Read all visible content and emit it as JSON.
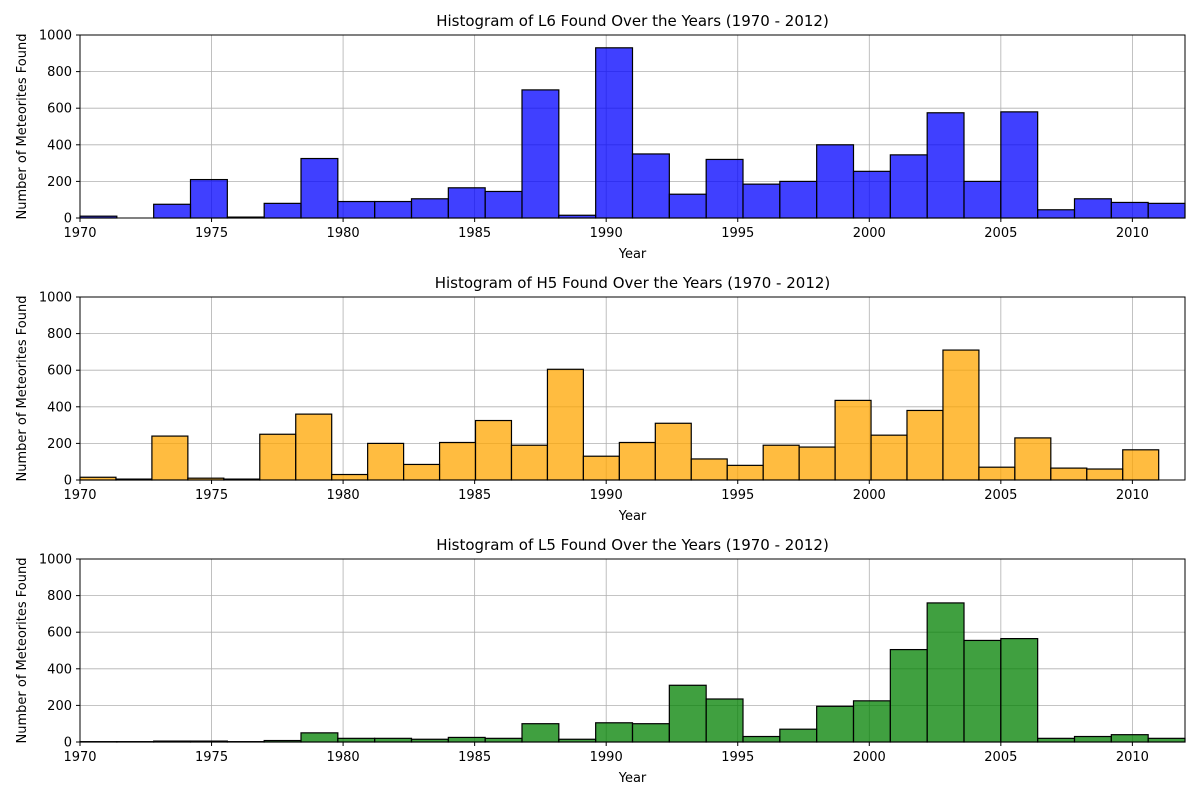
{
  "chart_data": [
    {
      "type": "bar",
      "title": "Histogram of L6 Found Over the Years (1970 - 2012)",
      "xlabel": "Year",
      "ylabel": "Number of Meteorites Found",
      "xlim": [
        1970,
        2012
      ],
      "ylim": [
        0,
        1000
      ],
      "xticks": [
        1970,
        1975,
        1980,
        1985,
        1990,
        1995,
        2000,
        2005,
        2010
      ],
      "yticks": [
        0,
        200,
        400,
        600,
        800,
        1000
      ],
      "grid": true,
      "color": "#0000ff",
      "bin_edges": [
        1970.0,
        1971.4,
        1972.8,
        1974.2,
        1975.6,
        1977.0,
        1978.4,
        1979.8,
        1981.2,
        1982.6,
        1984.0,
        1985.4,
        1986.8,
        1988.2,
        1989.6,
        1991.0,
        1992.4,
        1993.8,
        1995.2,
        1996.6,
        1998.0,
        1999.4,
        2000.8,
        2002.2,
        2003.6,
        2005.0,
        2006.4,
        2007.8,
        2009.2,
        2010.6,
        2012.0
      ],
      "values": [
        10,
        0,
        75,
        210,
        5,
        80,
        325,
        90,
        90,
        105,
        165,
        145,
        700,
        15,
        930,
        350,
        130,
        320,
        185,
        200,
        400,
        255,
        345,
        575,
        200,
        580,
        45,
        105,
        85,
        80
      ]
    },
    {
      "type": "bar",
      "title": "Histogram of H5 Found Over the Years (1970 - 2012)",
      "xlabel": "Year",
      "ylabel": "Number of Meteorites Found",
      "xlim": [
        1970,
        2012
      ],
      "ylim": [
        0,
        1000
      ],
      "xticks": [
        1970,
        1975,
        1980,
        1985,
        1990,
        1995,
        2000,
        2005,
        2010
      ],
      "yticks": [
        0,
        200,
        400,
        600,
        800,
        1000
      ],
      "grid": true,
      "color": "#ffa500",
      "bin_edges": [
        1970.0,
        1971.367,
        1972.733,
        1974.1,
        1975.467,
        1976.833,
        1978.2,
        1979.567,
        1980.933,
        1982.3,
        1983.667,
        1985.033,
        1986.4,
        1987.767,
        1989.133,
        1990.5,
        1991.867,
        1993.233,
        1994.6,
        1995.967,
        1997.333,
        1998.7,
        2000.067,
        2001.433,
        2002.8,
        2004.167,
        2005.533,
        2006.9,
        2008.267,
        2009.633,
        2011.0
      ],
      "values": [
        15,
        5,
        240,
        10,
        5,
        250,
        360,
        30,
        200,
        85,
        205,
        325,
        190,
        605,
        130,
        205,
        310,
        115,
        80,
        190,
        180,
        435,
        245,
        380,
        710,
        70,
        230,
        65,
        60,
        165
      ]
    },
    {
      "type": "bar",
      "title": "Histogram of L5 Found Over the Years (1970 - 2012)",
      "xlabel": "Year",
      "ylabel": "Number of Meteorites Found",
      "xlim": [
        1970,
        2012
      ],
      "ylim": [
        0,
        1000
      ],
      "xticks": [
        1970,
        1975,
        1980,
        1985,
        1990,
        1995,
        2000,
        2005,
        2010
      ],
      "yticks": [
        0,
        200,
        400,
        600,
        800,
        1000
      ],
      "grid": true,
      "color": "#008000",
      "bin_edges": [
        1970.0,
        1971.4,
        1972.8,
        1974.2,
        1975.6,
        1977.0,
        1978.4,
        1979.8,
        1981.2,
        1982.6,
        1984.0,
        1985.4,
        1986.8,
        1988.2,
        1989.6,
        1991.0,
        1992.4,
        1993.8,
        1995.2,
        1996.6,
        1998.0,
        1999.4,
        2000.8,
        2002.2,
        2003.6,
        2005.0,
        2006.4,
        2007.8,
        2009.2,
        2010.6,
        2012.0
      ],
      "values": [
        2,
        2,
        5,
        5,
        2,
        8,
        50,
        20,
        20,
        15,
        25,
        20,
        100,
        15,
        105,
        100,
        310,
        235,
        30,
        70,
        195,
        225,
        505,
        760,
        555,
        565,
        20,
        30,
        40,
        20
      ]
    }
  ]
}
